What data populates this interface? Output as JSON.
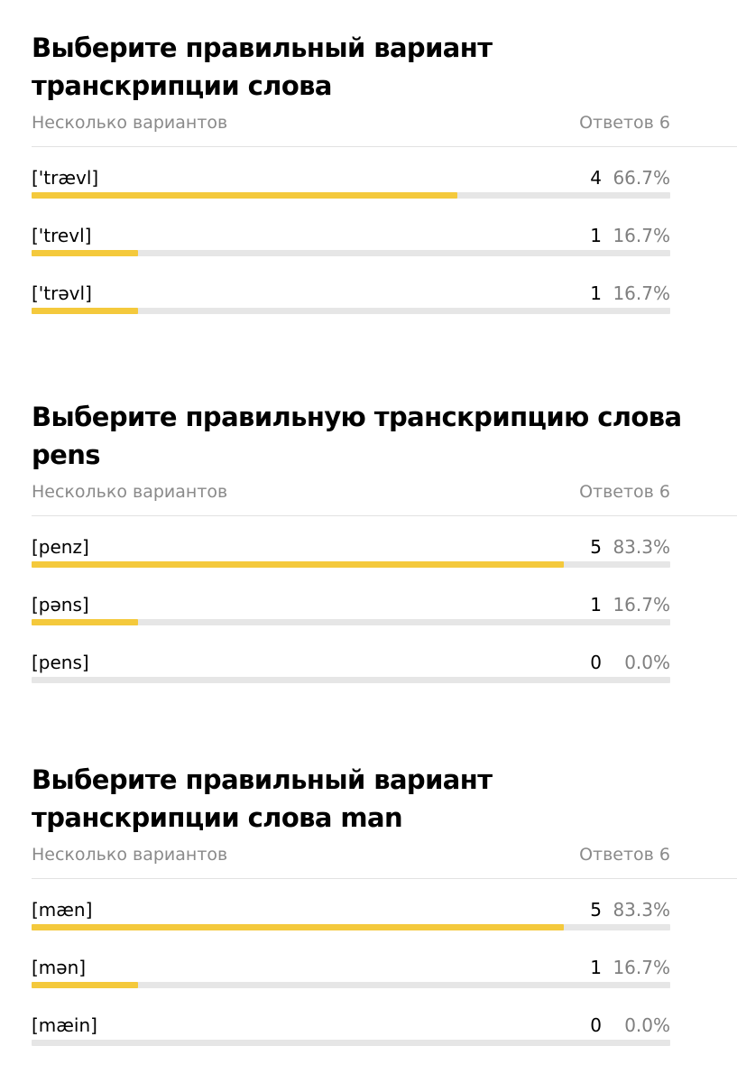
{
  "accent_color": "#f4c93c",
  "track_color": "#e6e6e6",
  "questions": [
    {
      "title": "Выберите правильный вариант транскрипции слова",
      "type_label": "Несколько вариантов",
      "answers_label": "Ответов 6",
      "options": [
        {
          "label": "['trævl]",
          "count": "4",
          "percent": "66.7%",
          "fraction": 0.667
        },
        {
          "label": "['trevl]",
          "count": "1",
          "percent": "16.7%",
          "fraction": 0.167
        },
        {
          "label": "['trəvl]",
          "count": "1",
          "percent": "16.7%",
          "fraction": 0.167
        }
      ]
    },
    {
      "title": "Выберите правильную транскрипцию слова pens",
      "type_label": "Несколько вариантов",
      "answers_label": "Ответов 6",
      "options": [
        {
          "label": "[penz]",
          "count": "5",
          "percent": "83.3%",
          "fraction": 0.833
        },
        {
          "label": "[pəns]",
          "count": "1",
          "percent": "16.7%",
          "fraction": 0.167
        },
        {
          "label": "[pens]",
          "count": "0",
          "percent": "0.0%",
          "fraction": 0.0
        }
      ]
    },
    {
      "title": "Выберите правильный вариант транскрипции слова man",
      "type_label": "Несколько вариантов",
      "answers_label": "Ответов 6",
      "options": [
        {
          "label": "[mæn]",
          "count": "5",
          "percent": "83.3%",
          "fraction": 0.833
        },
        {
          "label": "[mən]",
          "count": "1",
          "percent": "16.7%",
          "fraction": 0.167
        },
        {
          "label": "[mæin]",
          "count": "0",
          "percent": "0.0%",
          "fraction": 0.0
        }
      ]
    }
  ]
}
